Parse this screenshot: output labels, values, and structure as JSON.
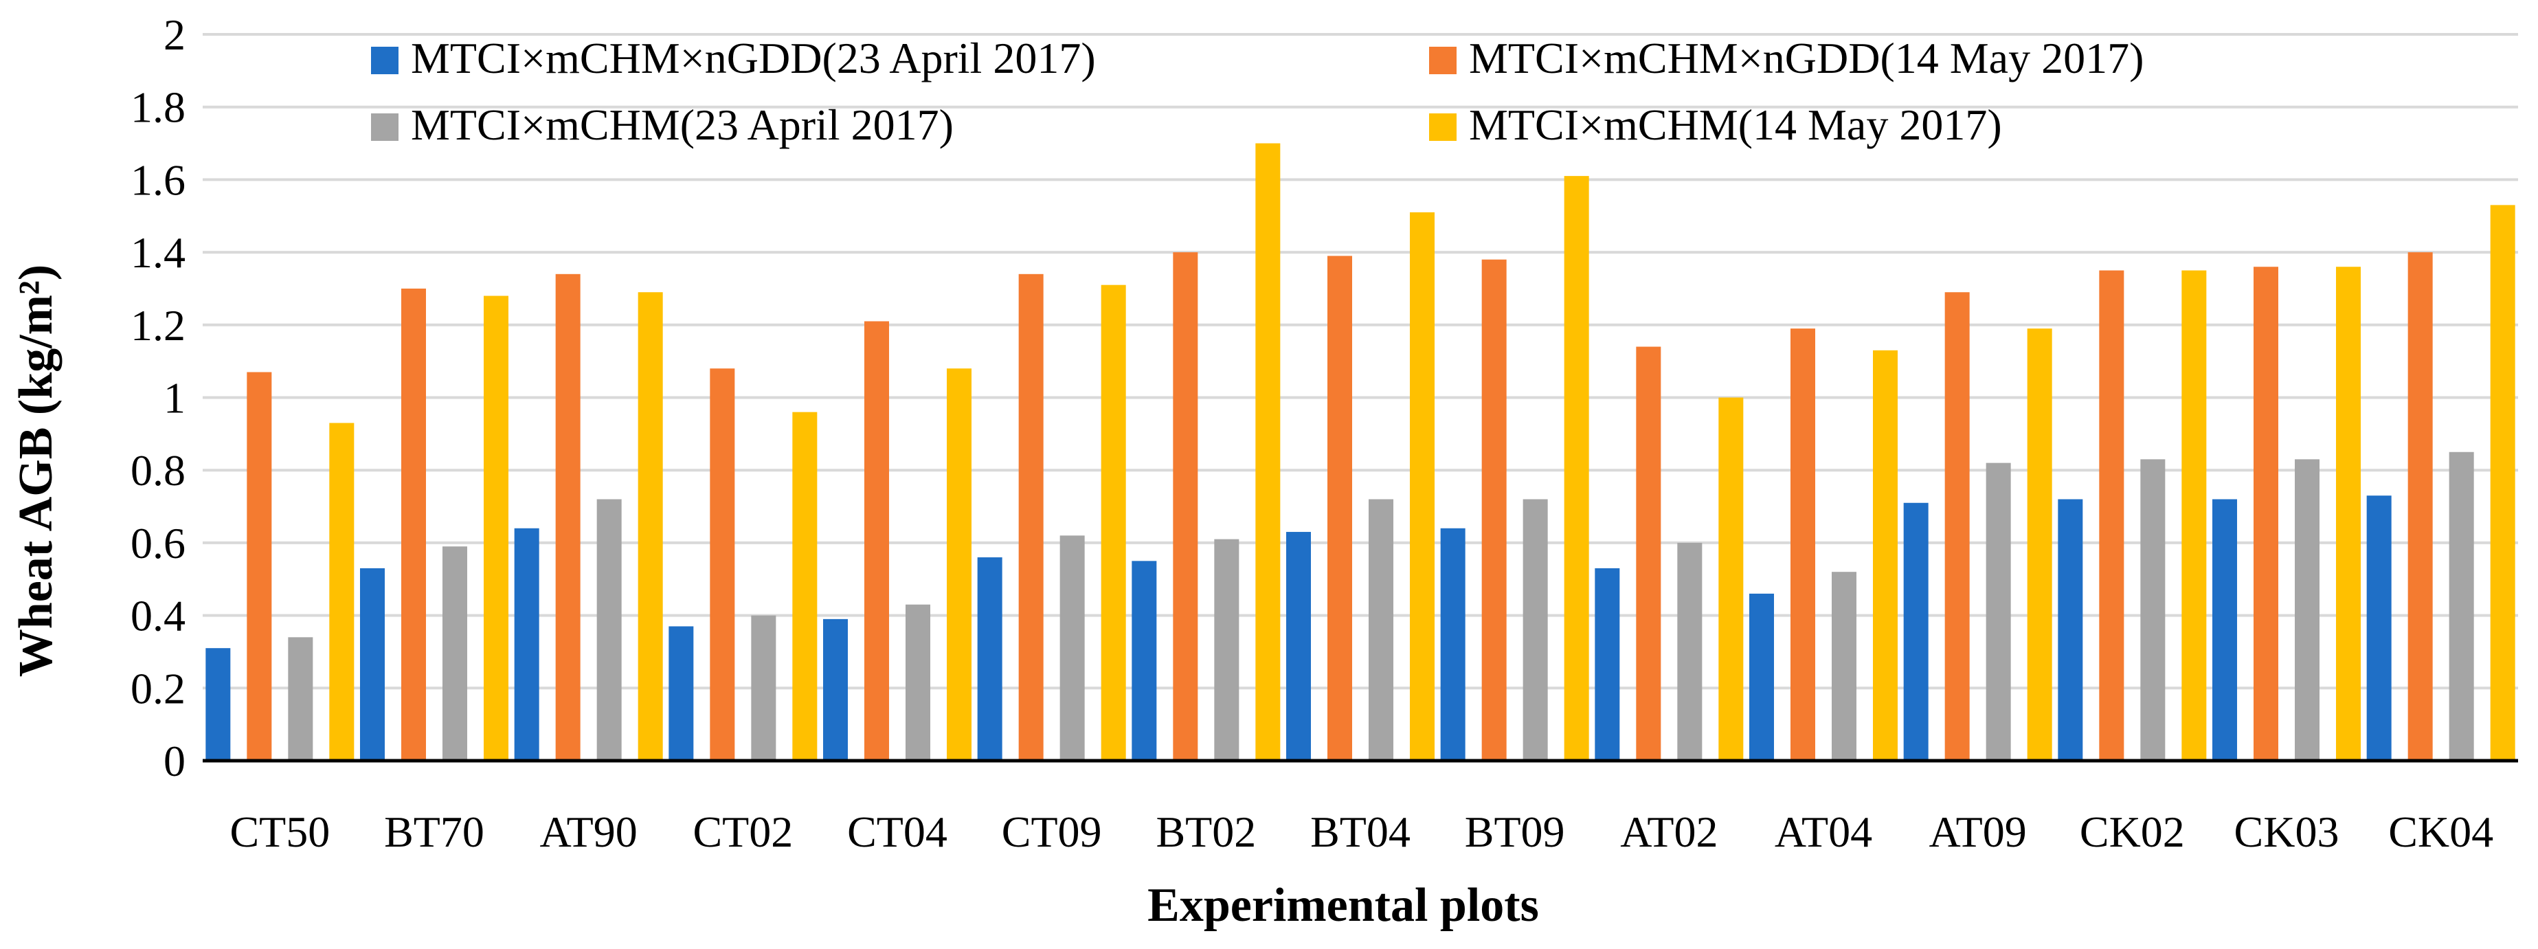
{
  "chart_data": {
    "type": "bar",
    "title": "",
    "xlabel": "Experimental plots",
    "ylabel": "Wheat AGB (kg/m²)",
    "ylim": [
      0,
      2
    ],
    "yticks": [
      0,
      0.2,
      0.4,
      0.6,
      0.8,
      1,
      1.2,
      1.4,
      1.6,
      1.8,
      2
    ],
    "ytick_labels": [
      "0",
      "0.2",
      "0.4",
      "0.6",
      "0.8",
      "1",
      "1.2",
      "1.4",
      "1.6",
      "1.8",
      "2"
    ],
    "grid": true,
    "legend_position": "top",
    "categories": [
      "CT50",
      "BT70",
      "AT90",
      "CT02",
      "CT04",
      "CT09",
      "BT02",
      "BT04",
      "BT09",
      "AT02",
      "AT04",
      "AT09",
      "CK02",
      "CK03",
      "CK04"
    ],
    "series": [
      {
        "name": "MTCI×mCHM×nGDD(23 April 2017)",
        "color": "#1f6fc6",
        "values": [
          0.31,
          0.53,
          0.64,
          0.37,
          0.39,
          0.56,
          0.55,
          0.63,
          0.64,
          0.53,
          0.46,
          0.71,
          0.72,
          0.72,
          0.73
        ]
      },
      {
        "name": "MTCI×mCHM×nGDD(14 May 2017)",
        "color": "#f47b30",
        "values": [
          1.07,
          1.3,
          1.34,
          1.08,
          1.21,
          1.34,
          1.4,
          1.39,
          1.38,
          1.14,
          1.19,
          1.29,
          1.35,
          1.36,
          1.4
        ]
      },
      {
        "name": "MTCI×mCHM(23 April 2017)",
        "color": "#a5a5a5",
        "values": [
          0.34,
          0.59,
          0.72,
          0.4,
          0.43,
          0.62,
          0.61,
          0.72,
          0.72,
          0.6,
          0.52,
          0.82,
          0.83,
          0.83,
          0.85
        ]
      },
      {
        "name": "MTCI×mCHM(14 May 2017)",
        "color": "#ffc000",
        "values": [
          0.93,
          1.28,
          1.29,
          0.96,
          1.08,
          1.31,
          1.7,
          1.51,
          1.61,
          1.0,
          1.13,
          1.19,
          1.35,
          1.36,
          1.53
        ]
      }
    ]
  }
}
